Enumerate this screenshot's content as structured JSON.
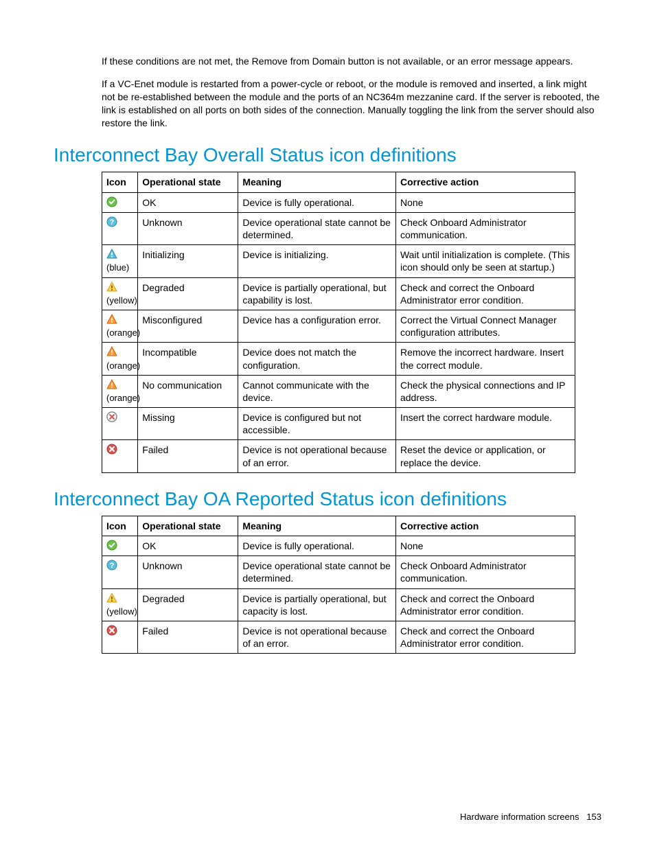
{
  "paragraphs": {
    "p1": "If these conditions are not met, the Remove from Domain button is not available, or an error message appears.",
    "p2": "If a VC-Enet module is restarted from a power-cycle or reboot, or the module is removed and inserted, a link might not be re-established between the module and the ports of an NC364m mezzanine card. If the server is rebooted, the link is established on all ports on both sides of the connection. Manually toggling the link from the server should also restore the link."
  },
  "heading1": "Interconnect Bay Overall Status icon definitions",
  "heading2": "Interconnect Bay OA Reported Status icon definitions",
  "columns": {
    "icon": "Icon",
    "state": "Operational state",
    "meaning": "Meaning",
    "action": "Corrective action"
  },
  "table1": [
    {
      "icon": "ok",
      "note": "",
      "state": "OK",
      "meaning": "Device is fully operational.",
      "action": "None"
    },
    {
      "icon": "unknown",
      "note": "",
      "state": "Unknown",
      "meaning": "Device operational state cannot be determined.",
      "action": "Check Onboard Administrator communication."
    },
    {
      "icon": "warn-blue",
      "note": "(blue)",
      "state": "Initializing",
      "meaning": "Device is initializing.",
      "action": "Wait until initialization is complete. (This icon should only be seen at startup.)"
    },
    {
      "icon": "warn-yellow",
      "note": "(yellow)",
      "state": "Degraded",
      "meaning": "Device is partially operational, but capability is lost.",
      "action": "Check and correct the Onboard Administrator error condition."
    },
    {
      "icon": "warn-orange",
      "note": "(orange)",
      "state": "Misconfigured",
      "meaning": "Device has a configuration error.",
      "action": "Correct the Virtual Connect Manager configuration attributes."
    },
    {
      "icon": "warn-orange",
      "note": "(orange)",
      "state": "Incompatible",
      "meaning": "Device does not match the configuration.",
      "action": "Remove the incorrect hardware. Insert the correct module."
    },
    {
      "icon": "warn-orange",
      "note": "(orange)",
      "state": "No communication",
      "meaning": "Cannot communicate with the device.",
      "action": "Check the physical connections and IP address."
    },
    {
      "icon": "missing",
      "note": "",
      "state": "Missing",
      "meaning": "Device is configured but not accessible.",
      "action": "Insert the correct hardware module."
    },
    {
      "icon": "failed",
      "note": "",
      "state": "Failed",
      "meaning": "Device is not operational because of an error.",
      "action": "Reset the device or application, or replace the device."
    }
  ],
  "table2": [
    {
      "icon": "ok",
      "note": "",
      "state": "OK",
      "meaning": "Device is fully operational.",
      "action": "None"
    },
    {
      "icon": "unknown",
      "note": "",
      "state": "Unknown",
      "meaning": "Device operational state cannot be determined.",
      "action": "Check Onboard Administrator communication."
    },
    {
      "icon": "warn-yellow",
      "note": "(yellow)",
      "state": "Degraded",
      "meaning": "Device is partially operational, but capacity is lost.",
      "action": "Check and correct the Onboard Administrator error condition."
    },
    {
      "icon": "failed",
      "note": "",
      "state": "Failed",
      "meaning": "Device is not operational because of an error.",
      "action": "Check and correct the Onboard Administrator error condition."
    }
  ],
  "footer": {
    "section": "Hardware information screens",
    "page": "153"
  },
  "icon_colors": {
    "ok": {
      "fill": "#6cc24a",
      "border": "#3a8f1e",
      "fg": "#ffffff"
    },
    "unknown": {
      "fill": "#5bc0de",
      "border": "#2a8aa8",
      "fg": "#ffffff"
    },
    "warn-blue": {
      "fill": "#5bc0de",
      "border": "#2a8aa8",
      "fg": "#ffffff"
    },
    "warn-yellow": {
      "fill": "#ffd24d",
      "border": "#d4a017",
      "fg": "#6b4e00"
    },
    "warn-orange": {
      "fill": "#ff9933",
      "border": "#cc6600",
      "fg": "#ffffff"
    },
    "missing": {
      "fill": "#ffffff",
      "border": "#888888",
      "fg": "#d9534f"
    },
    "failed": {
      "fill": "#d9534f",
      "border": "#a83232",
      "fg": "#ffffff"
    }
  }
}
